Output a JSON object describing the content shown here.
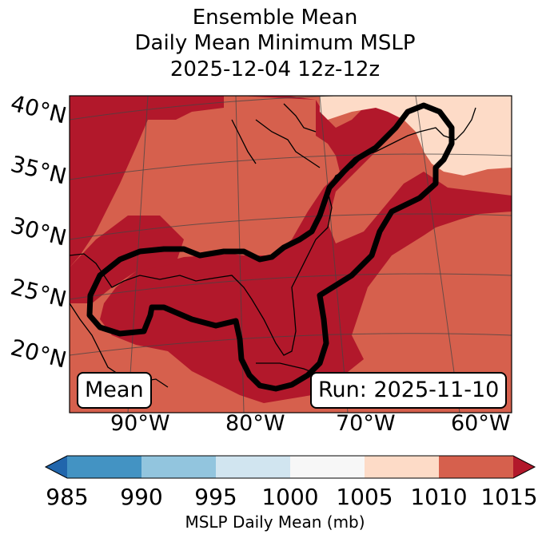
{
  "title": {
    "line1": "Ensemble Mean",
    "line2": "Daily Mean Minimum MSLP",
    "line3": "2025-12-04 12z-12z"
  },
  "map": {
    "lat_labels": [
      "40°N",
      "35°N",
      "30°N",
      "25°N",
      "20°N"
    ],
    "lon_labels": [
      "90°W",
      "80°W",
      "70°W",
      "60°W"
    ],
    "left_box": "Mean",
    "right_box": "Run: 2025-11-10",
    "colors": {
      "1000_1005": "#f7f7f7",
      "1005_1010": "#fddbc7",
      "1010_1015": "#d6604d",
      "above_1015": "#b2182b",
      "contour": "#000000"
    }
  },
  "colorbar": {
    "label": "MSLP Daily Mean (mb)",
    "ticks": [
      "985",
      "990",
      "995",
      "1000",
      "1005",
      "1010",
      "1015"
    ],
    "colors": [
      "#2166ac",
      "#4393c3",
      "#92c5de",
      "#d1e5f0",
      "#f7f7f7",
      "#fddbc7",
      "#d6604d",
      "#b2182b"
    ]
  }
}
